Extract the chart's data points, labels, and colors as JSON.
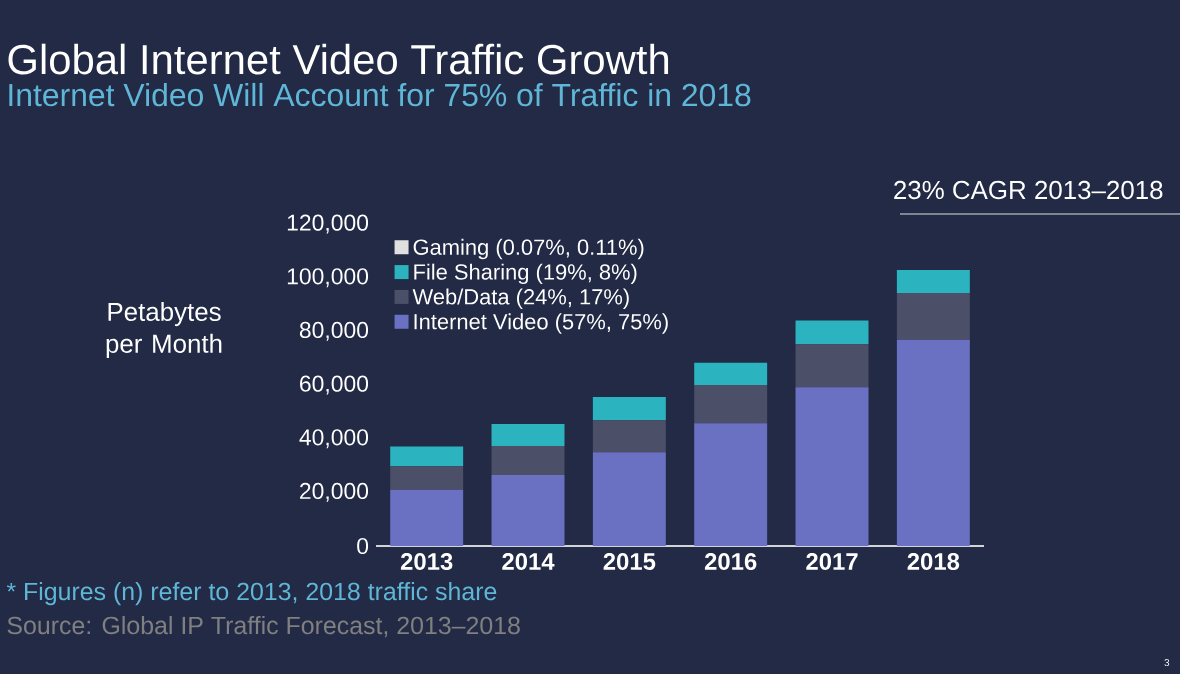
{
  "chart_data": {
    "type": "bar",
    "stacked": true,
    "title": "Global Internet Video Traffic Growth",
    "subtitle": "Internet Video Will Account for 75% of Traffic in 2018",
    "ylabel": "Petabytes per Month",
    "categories": [
      "2013",
      "2014",
      "2015",
      "2016",
      "2017",
      "2018"
    ],
    "series": [
      {
        "name": "Internet Video (57%, 75%)",
        "color": "#6b71c2",
        "values": [
          21000,
          26500,
          34900,
          45700,
          59200,
          76900
        ]
      },
      {
        "name": "Web/Data (24%, 17%)",
        "color": "#4b4f68",
        "values": [
          8700,
          10800,
          12000,
          14300,
          16000,
          17400
        ]
      },
      {
        "name": "File Sharing (19%, 8%)",
        "color": "#2bb3c0",
        "values": [
          7400,
          8200,
          8600,
          8300,
          8800,
          8600
        ]
      },
      {
        "name": "Gaming (0.07%, 0.11%)",
        "color": "#e0e0e0",
        "values": [
          null,
          null,
          null,
          null,
          null,
          null
        ]
      }
    ],
    "ylim": [
      0,
      120000
    ],
    "yticks": [
      0,
      {
        "value": 20000,
        "label": "20,000"
      },
      {
        "value": 40000,
        "label": "40,000"
      },
      {
        "value": 60000,
        "label": "60,000"
      },
      {
        "value": 80000,
        "label": "80,000"
      },
      {
        "value": 100000,
        "label": "100,000"
      },
      {
        "value": 120000,
        "label": "120,000"
      }
    ],
    "grid": false,
    "legend": "top left",
    "annotations": [
      "23% CAGR  2013–2018",
      "* Figures (n) refer to 2013, 2018 traffic share",
      "Source: Global IP Traffic Forecast, 2013–2018",
      "3"
    ]
  }
}
